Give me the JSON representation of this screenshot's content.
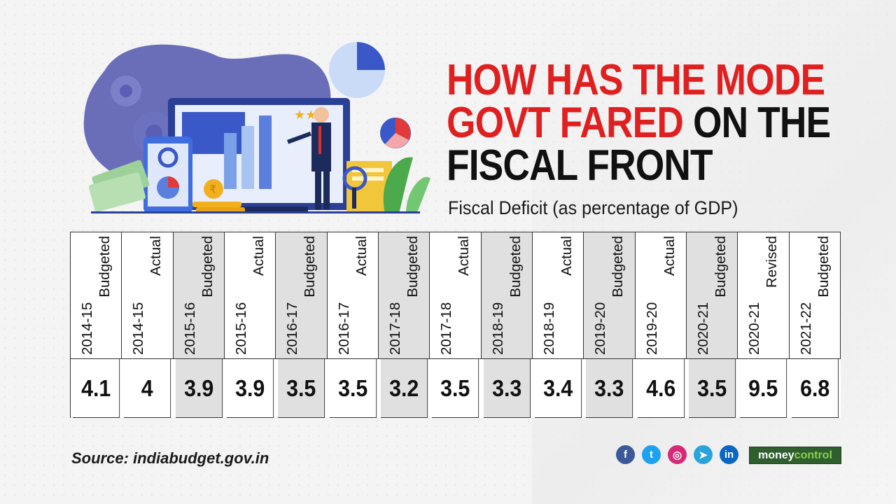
{
  "title": {
    "part1_red": "HOW HAS THE MODE",
    "part2_red": "GOVT FARED",
    "part2_black": " ON THE",
    "part3_black": "FISCAL FRONT"
  },
  "subtitle": "Fiscal Deficit (as percentage of GDP)",
  "chart_data": {
    "type": "table",
    "title": "Fiscal Deficit (as percentage of GDP)",
    "columns": [
      {
        "year": "2014-15",
        "kind": "Budgeted",
        "value": 4.1
      },
      {
        "year": "2014-15",
        "kind": "Actual",
        "value": 4
      },
      {
        "year": "2015-16",
        "kind": "Budgeted",
        "value": 3.9
      },
      {
        "year": "2015-16",
        "kind": "Actual",
        "value": 3.9
      },
      {
        "year": "2016-17",
        "kind": "Budgeted",
        "value": 3.5
      },
      {
        "year": "2016-17",
        "kind": "Actual",
        "value": 3.5
      },
      {
        "year": "2017-18",
        "kind": "Budgeted",
        "value": 3.2
      },
      {
        "year": "2017-18",
        "kind": "Actual",
        "value": 3.5
      },
      {
        "year": "2018-19",
        "kind": "Budgeted",
        "value": 3.3
      },
      {
        "year": "2018-19",
        "kind": "Actual",
        "value": 3.4
      },
      {
        "year": "2019-20",
        "kind": "Budgeted",
        "value": 3.3
      },
      {
        "year": "2019-20",
        "kind": "Actual",
        "value": 4.6
      },
      {
        "year": "2020-21",
        "kind": "Budgeted",
        "value": 3.5
      },
      {
        "year": "2020-21",
        "kind": "Revised",
        "value": 9.5
      },
      {
        "year": "2021-22",
        "kind": "Budgeted",
        "value": 6.8
      }
    ]
  },
  "footer": {
    "source": "Source: indiabudget.gov.in",
    "brand_part1": "money",
    "brand_part2": "control"
  },
  "social": [
    {
      "name": "facebook-icon",
      "glyph": "f",
      "color": "#3b5998"
    },
    {
      "name": "twitter-icon",
      "glyph": "t",
      "color": "#1da1f2"
    },
    {
      "name": "instagram-icon",
      "glyph": "◎",
      "color": "#d62976"
    },
    {
      "name": "telegram-icon",
      "glyph": "➤",
      "color": "#2aa3dc"
    },
    {
      "name": "linkedin-icon",
      "glyph": "in",
      "color": "#0a66c2"
    }
  ]
}
